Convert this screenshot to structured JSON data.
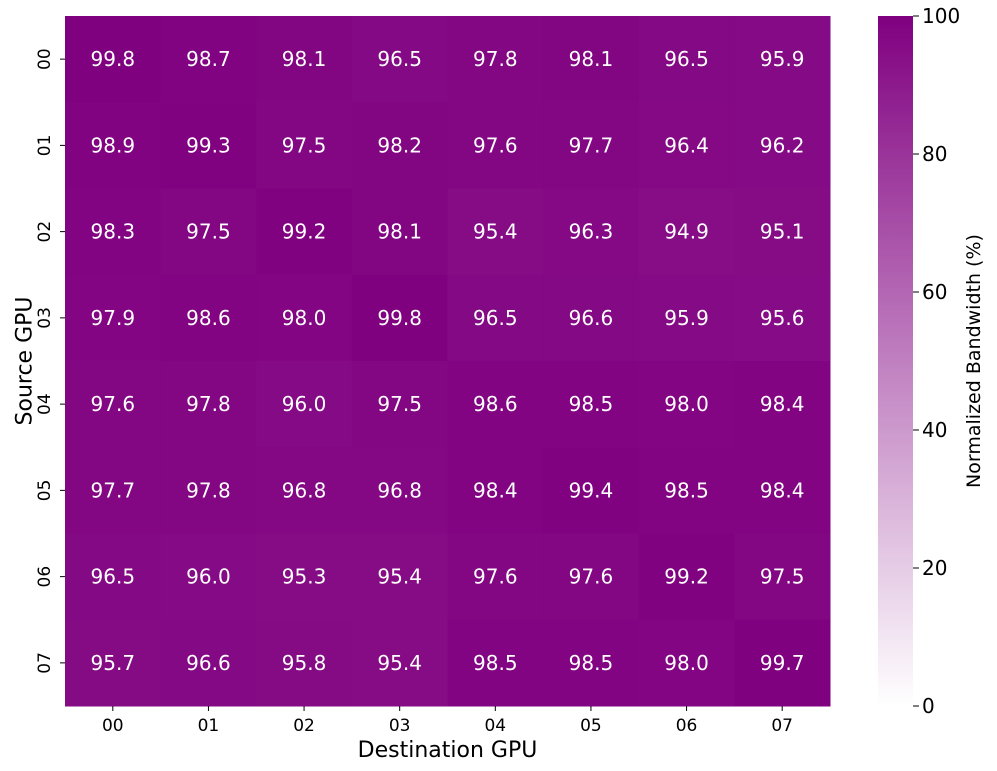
{
  "chart_data": {
    "type": "heatmap",
    "xlabel": "Destination GPU",
    "ylabel": "Source GPU",
    "x_categories": [
      "00",
      "01",
      "02",
      "03",
      "04",
      "05",
      "06",
      "07"
    ],
    "y_categories": [
      "00",
      "01",
      "02",
      "03",
      "04",
      "05",
      "06",
      "07"
    ],
    "values": [
      [
        99.8,
        98.7,
        98.1,
        96.5,
        97.8,
        98.1,
        96.5,
        95.9
      ],
      [
        98.9,
        99.3,
        97.5,
        98.2,
        97.6,
        97.7,
        96.4,
        96.2
      ],
      [
        98.3,
        97.5,
        99.2,
        98.1,
        95.4,
        96.3,
        94.9,
        95.1
      ],
      [
        97.9,
        98.6,
        98.0,
        99.8,
        96.5,
        96.6,
        95.9,
        95.6
      ],
      [
        97.6,
        97.8,
        96.0,
        97.5,
        98.6,
        98.5,
        98.0,
        98.4
      ],
      [
        97.7,
        97.8,
        96.8,
        96.8,
        98.4,
        99.4,
        98.5,
        98.4
      ],
      [
        96.5,
        96.0,
        95.3,
        95.4,
        97.6,
        97.6,
        99.2,
        97.5
      ],
      [
        95.7,
        96.6,
        95.8,
        95.4,
        98.5,
        98.5,
        98.0,
        99.7
      ]
    ],
    "value_labels": [
      [
        "99.8",
        "98.7",
        "98.1",
        "96.5",
        "97.8",
        "98.1",
        "96.5",
        "95.9"
      ],
      [
        "98.9",
        "99.3",
        "97.5",
        "98.2",
        "97.6",
        "97.7",
        "96.4",
        "96.2"
      ],
      [
        "98.3",
        "97.5",
        "99.2",
        "98.1",
        "95.4",
        "96.3",
        "94.9",
        "95.1"
      ],
      [
        "97.9",
        "98.6",
        "98.0",
        "99.8",
        "96.5",
        "96.6",
        "95.9",
        "95.6"
      ],
      [
        "97.6",
        "97.8",
        "96.0",
        "97.5",
        "98.6",
        "98.5",
        "98.0",
        "98.4"
      ],
      [
        "97.7",
        "97.8",
        "96.8",
        "96.8",
        "98.4",
        "99.4",
        "98.5",
        "98.4"
      ],
      [
        "96.5",
        "96.0",
        "95.3",
        "95.4",
        "97.6",
        "97.6",
        "99.2",
        "97.5"
      ],
      [
        "95.7",
        "96.6",
        "95.8",
        "95.4",
        "98.5",
        "98.5",
        "98.0",
        "99.7"
      ]
    ],
    "colorbar": {
      "label": "Normalized Bandwidth (%)",
      "range": [
        0,
        100
      ],
      "ticks": [
        "0",
        "20",
        "40",
        "60",
        "80",
        "100"
      ],
      "low_color": "#ffffff",
      "high_color": "#800080"
    },
    "grid": false,
    "colorbar_position": "right"
  }
}
